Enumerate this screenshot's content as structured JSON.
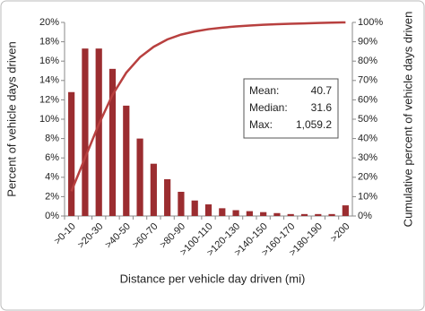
{
  "chart_data": {
    "type": "bar_line",
    "xlabel": "Distance per vehicle day driven (mi)",
    "ylabel": "Percent of vehicle days driven",
    "y2label": "Cumulative percent of vehicle days driven",
    "categories": [
      ">0-10",
      null,
      ">20-30",
      null,
      ">40-50",
      null,
      ">60-70",
      null,
      ">80-90",
      null,
      ">100-110",
      null,
      ">120-130",
      null,
      ">140-150",
      null,
      ">160-170",
      null,
      ">180-190",
      null,
      ">200"
    ],
    "series": [
      {
        "type": "bar",
        "color": "#9b2d30",
        "values": [
          12.8,
          17.3,
          17.3,
          15.2,
          11.4,
          8.0,
          5.4,
          3.8,
          2.5,
          1.6,
          1.2,
          0.8,
          0.6,
          0.5,
          0.4,
          0.3,
          0.2,
          0.2,
          0.2,
          0.2,
          1.1
        ]
      },
      {
        "type": "line",
        "axis": "y2",
        "color": "#b8403f",
        "values": [
          12.8,
          30.1,
          47.4,
          62.6,
          74.0,
          82.0,
          87.4,
          91.2,
          93.7,
          95.3,
          96.5,
          97.3,
          97.9,
          98.4,
          98.8,
          99.1,
          99.3,
          99.5,
          99.7,
          99.9,
          100
        ]
      }
    ],
    "ylim": [
      0,
      20
    ],
    "yticks": [
      {
        "value": 0,
        "label": "0%"
      },
      {
        "value": 2,
        "label": "2%"
      },
      {
        "value": 4,
        "label": "4%"
      },
      {
        "value": 6,
        "label": "6%"
      },
      {
        "value": 8,
        "label": "8%"
      },
      {
        "value": 10,
        "label": "10%"
      },
      {
        "value": 12,
        "label": "12%"
      },
      {
        "value": 14,
        "label": "14%"
      },
      {
        "value": 16,
        "label": "16%"
      },
      {
        "value": 18,
        "label": "18%"
      },
      {
        "value": 20,
        "label": "20%"
      }
    ],
    "y2lim": [
      0,
      100
    ],
    "y2ticks": [
      {
        "value": 0,
        "label": "0%"
      },
      {
        "value": 10,
        "label": "10%"
      },
      {
        "value": 20,
        "label": "20%"
      },
      {
        "value": 30,
        "label": "30%"
      },
      {
        "value": 40,
        "label": "40%"
      },
      {
        "value": 50,
        "label": "50%"
      },
      {
        "value": 60,
        "label": "60%"
      },
      {
        "value": 70,
        "label": "70%"
      },
      {
        "value": 80,
        "label": "80%"
      },
      {
        "value": 90,
        "label": "90%"
      },
      {
        "value": 100,
        "label": "100%"
      }
    ],
    "annotation": [
      {
        "label": "Mean:",
        "value": "40.7"
      },
      {
        "label": "Median:",
        "value": "31.6"
      },
      {
        "label": "Max:",
        "value": "1,059.2"
      }
    ]
  }
}
